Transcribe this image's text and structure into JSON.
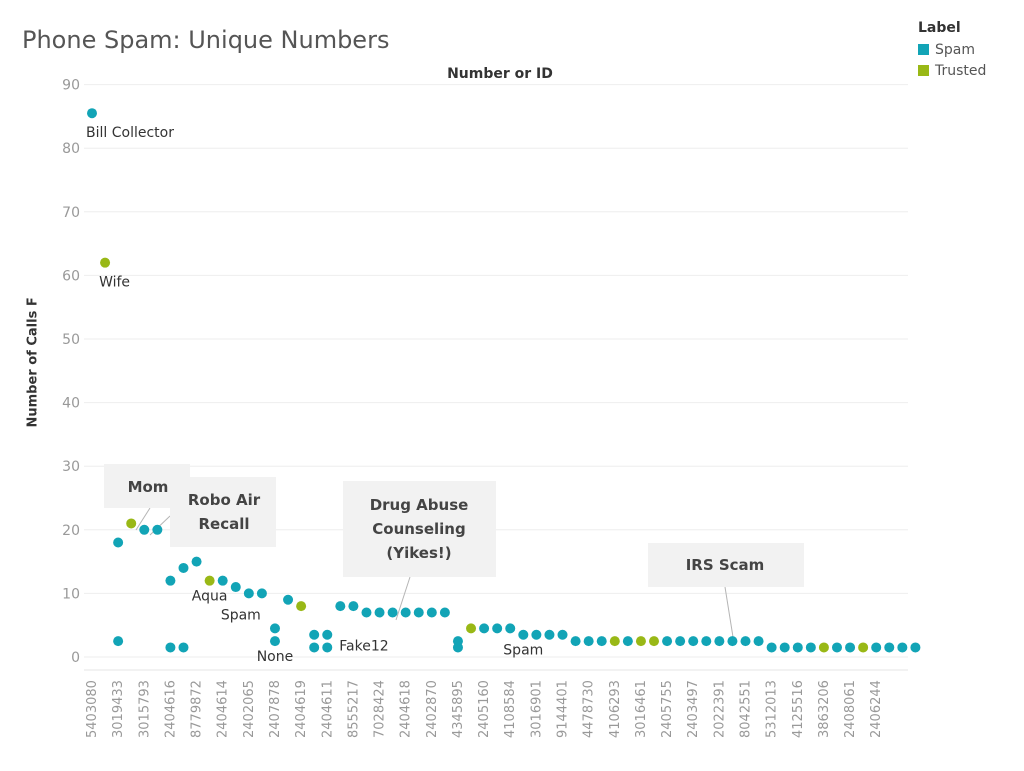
{
  "chart_data": {
    "type": "scatter",
    "title": "Phone Spam: Unique Numbers",
    "column_title": "Number or ID",
    "ylabel": "Number of Calls F",
    "xlabel": "",
    "ylim": [
      0,
      90
    ],
    "yticks": [
      0,
      10,
      20,
      30,
      40,
      50,
      60,
      70,
      80,
      90
    ],
    "grid": true,
    "legend": {
      "title": "Label",
      "placement": "top-right",
      "entries": [
        {
          "name": "Spam",
          "color": "#12a4b6"
        },
        {
          "name": "Trusted",
          "color": "#99b816"
        }
      ]
    },
    "xtick_labels": [
      "5403080",
      "3019433",
      "3015793",
      "2404616",
      "8779872",
      "2404614",
      "2402065",
      "2407878",
      "2404619",
      "2404611",
      "8555217",
      "7028424",
      "2404618",
      "2402870",
      "4345895",
      "2405160",
      "4108584",
      "3016901",
      "9144401",
      "4478730",
      "4106293",
      "3016461",
      "2405755",
      "2403497",
      "2022391",
      "8042551",
      "5312013",
      "4125516",
      "3863206",
      "2408061",
      "2406244"
    ],
    "points": [
      {
        "i": 0,
        "y": 85.5,
        "label": "Spam",
        "text": "Bill Collector"
      },
      {
        "i": 1,
        "y": 62,
        "label": "Trusted",
        "text": "Wife"
      },
      {
        "i": 2,
        "y": 18,
        "label": "Spam"
      },
      {
        "i": 2,
        "y": 2.5,
        "label": "Spam"
      },
      {
        "i": 3,
        "y": 21,
        "label": "Trusted"
      },
      {
        "i": 4,
        "y": 20,
        "label": "Spam"
      },
      {
        "i": 5,
        "y": 20,
        "label": "Spam"
      },
      {
        "i": 6,
        "y": 12,
        "label": "Spam"
      },
      {
        "i": 6,
        "y": 1.5,
        "label": "Spam"
      },
      {
        "i": 7,
        "y": 14,
        "label": "Spam"
      },
      {
        "i": 7,
        "y": 1.5,
        "label": "Spam"
      },
      {
        "i": 8,
        "y": 15,
        "label": "Spam"
      },
      {
        "i": 9,
        "y": 12,
        "label": "Trusted",
        "text": "Aqua"
      },
      {
        "i": 10,
        "y": 12,
        "label": "Spam"
      },
      {
        "i": 11,
        "y": 11,
        "label": "Spam"
      },
      {
        "i": 12,
        "y": 10,
        "label": "Spam",
        "text": "Spam"
      },
      {
        "i": 13,
        "y": 10,
        "label": "Spam"
      },
      {
        "i": 14,
        "y": 4.5,
        "label": "Spam"
      },
      {
        "i": 14,
        "y": 2.5,
        "label": "Spam",
        "text": "None"
      },
      {
        "i": 15,
        "y": 9,
        "label": "Spam"
      },
      {
        "i": 16,
        "y": 8,
        "label": "Trusted"
      },
      {
        "i": 17,
        "y": 3.5,
        "label": "Spam"
      },
      {
        "i": 17,
        "y": 1.5,
        "label": "Spam"
      },
      {
        "i": 18,
        "y": 3.5,
        "label": "Spam"
      },
      {
        "i": 18,
        "y": 1.5,
        "label": "Spam",
        "text": "Fake12"
      },
      {
        "i": 19,
        "y": 8,
        "label": "Spam"
      },
      {
        "i": 20,
        "y": 8,
        "label": "Spam"
      },
      {
        "i": 21,
        "y": 7,
        "label": "Spam"
      },
      {
        "i": 22,
        "y": 7,
        "label": "Spam"
      },
      {
        "i": 23,
        "y": 7,
        "label": "Spam"
      },
      {
        "i": 24,
        "y": 7,
        "label": "Spam"
      },
      {
        "i": 25,
        "y": 7,
        "label": "Spam"
      },
      {
        "i": 26,
        "y": 7,
        "label": "Spam"
      },
      {
        "i": 27,
        "y": 7,
        "label": "Spam"
      },
      {
        "i": 28,
        "y": 2.5,
        "label": "Spam"
      },
      {
        "i": 28,
        "y": 1.5,
        "label": "Spam"
      },
      {
        "i": 29,
        "y": 4.5,
        "label": "Trusted"
      },
      {
        "i": 30,
        "y": 4.5,
        "label": "Spam"
      },
      {
        "i": 31,
        "y": 4.5,
        "label": "Spam"
      },
      {
        "i": 32,
        "y": 4.5,
        "label": "Spam"
      },
      {
        "i": 33,
        "y": 3.5,
        "label": "Spam",
        "text": "Spam"
      },
      {
        "i": 34,
        "y": 3.5,
        "label": "Spam"
      },
      {
        "i": 35,
        "y": 3.5,
        "label": "Spam"
      },
      {
        "i": 36,
        "y": 3.5,
        "label": "Spam"
      },
      {
        "i": 37,
        "y": 2.5,
        "label": "Spam"
      },
      {
        "i": 38,
        "y": 2.5,
        "label": "Spam"
      },
      {
        "i": 39,
        "y": 2.5,
        "label": "Spam"
      },
      {
        "i": 40,
        "y": 2.5,
        "label": "Trusted"
      },
      {
        "i": 41,
        "y": 2.5,
        "label": "Spam"
      },
      {
        "i": 42,
        "y": 2.5,
        "label": "Trusted"
      },
      {
        "i": 43,
        "y": 2.5,
        "label": "Trusted"
      },
      {
        "i": 44,
        "y": 2.5,
        "label": "Spam"
      },
      {
        "i": 45,
        "y": 2.5,
        "label": "Spam"
      },
      {
        "i": 46,
        "y": 2.5,
        "label": "Spam"
      },
      {
        "i": 47,
        "y": 2.5,
        "label": "Spam"
      },
      {
        "i": 48,
        "y": 2.5,
        "label": "Spam"
      },
      {
        "i": 49,
        "y": 2.5,
        "label": "Spam"
      },
      {
        "i": 50,
        "y": 2.5,
        "label": "Spam"
      },
      {
        "i": 51,
        "y": 2.5,
        "label": "Spam"
      },
      {
        "i": 52,
        "y": 1.5,
        "label": "Spam"
      },
      {
        "i": 53,
        "y": 1.5,
        "label": "Spam"
      },
      {
        "i": 54,
        "y": 1.5,
        "label": "Spam"
      },
      {
        "i": 55,
        "y": 1.5,
        "label": "Spam"
      },
      {
        "i": 56,
        "y": 1.5,
        "label": "Trusted"
      },
      {
        "i": 57,
        "y": 1.5,
        "label": "Spam"
      },
      {
        "i": 58,
        "y": 1.5,
        "label": "Spam"
      },
      {
        "i": 59,
        "y": 1.5,
        "label": "Trusted"
      },
      {
        "i": 60,
        "y": 1.5,
        "label": "Spam"
      },
      {
        "i": 61,
        "y": 1.5,
        "label": "Spam"
      },
      {
        "i": 62,
        "y": 1.5,
        "label": "Spam"
      },
      {
        "i": 63,
        "y": 1.5,
        "label": "Spam"
      }
    ],
    "annotations": [
      {
        "lines": [
          "Mom"
        ],
        "target": 3
      },
      {
        "lines": [
          "Robo Air",
          "Recall"
        ],
        "target": 4
      },
      {
        "lines": [
          "Drug Abuse",
          "Counseling",
          "(Yikes!)"
        ],
        "target": 23
      },
      {
        "lines": [
          "IRS Scam"
        ],
        "target": 50
      }
    ]
  }
}
